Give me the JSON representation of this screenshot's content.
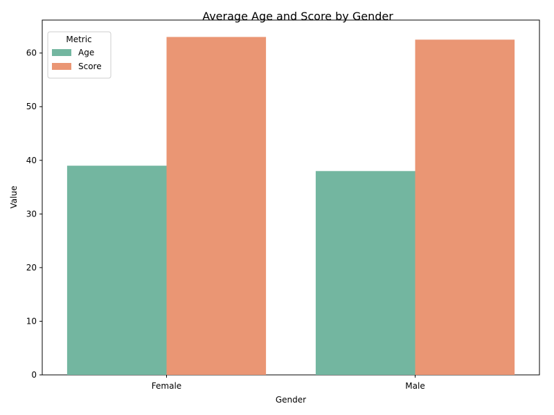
{
  "chart_data": {
    "type": "bar",
    "title": "Average Age and Score by Gender",
    "xlabel": "Gender",
    "ylabel": "Value",
    "categories": [
      "Female",
      "Male"
    ],
    "series": [
      {
        "name": "Age",
        "values": [
          39.0,
          38.0
        ],
        "color": "#73b6a0"
      },
      {
        "name": "Score",
        "values": [
          63.0,
          62.5
        ],
        "color": "#ea9674"
      }
    ],
    "ylim": [
      0,
      66.15
    ],
    "yticks": [
      0,
      10,
      20,
      30,
      40,
      50,
      60
    ],
    "legend": {
      "title": "Metric",
      "placement": "top-left"
    },
    "grid": false
  }
}
